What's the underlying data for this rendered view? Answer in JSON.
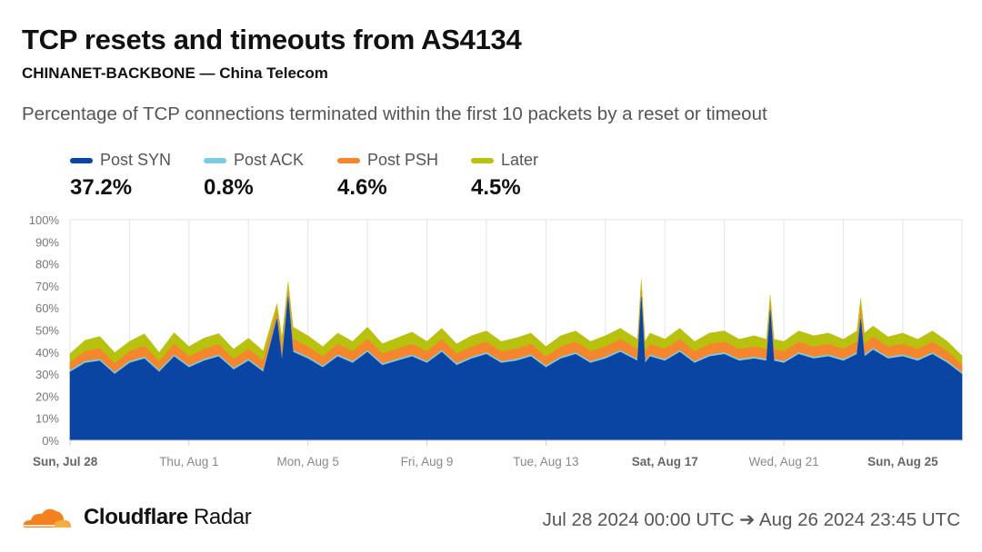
{
  "header": {
    "title": "TCP resets and timeouts from AS4134",
    "subtitle": "CHINANET-BACKBONE — China Telecom",
    "description": "Percentage of TCP connections terminated within the first 10 packets by a reset or timeout"
  },
  "legend": [
    {
      "label": "Post SYN",
      "value": "37.2%",
      "color": "#0b45a3"
    },
    {
      "label": "Post ACK",
      "value": "0.8%",
      "color": "#79cbe6"
    },
    {
      "label": "Post PSH",
      "value": "4.6%",
      "color": "#f5862e"
    },
    {
      "label": "Later",
      "value": "4.5%",
      "color": "#b8c20e"
    }
  ],
  "chart_data": {
    "type": "area",
    "stacked": true,
    "ylim": [
      0,
      100
    ],
    "y_ticks": [
      "0%",
      "10%",
      "20%",
      "30%",
      "40%",
      "50%",
      "60%",
      "70%",
      "80%",
      "90%",
      "100%"
    ],
    "x_range": [
      "2024-07-28T00:00",
      "2024-08-26T23:45"
    ],
    "x_ticks": [
      {
        "date": "2024-07-28",
        "label": "Sun, Jul 28",
        "bold": true
      },
      {
        "date": "2024-08-01",
        "label": "Thu, Aug 1",
        "bold": false
      },
      {
        "date": "2024-08-05",
        "label": "Mon, Aug 5",
        "bold": false
      },
      {
        "date": "2024-08-09",
        "label": "Fri, Aug 9",
        "bold": false
      },
      {
        "date": "2024-08-13",
        "label": "Tue, Aug 13",
        "bold": false
      },
      {
        "date": "2024-08-17",
        "label": "Sat, Aug 17",
        "bold": true
      },
      {
        "date": "2024-08-21",
        "label": "Wed, Aug 21",
        "bold": false
      },
      {
        "date": "2024-08-25",
        "label": "Sun, Aug 25",
        "bold": true
      }
    ],
    "grid": "vertical",
    "legend_position": "top",
    "series_names": [
      "Post SYN",
      "Post ACK",
      "Post PSH",
      "Later"
    ],
    "points": [
      [
        "2024-07-28T00:00",
        31,
        0.8,
        3.5,
        4.0
      ],
      [
        "2024-07-28T12:00",
        35,
        0.8,
        4.5,
        5.0
      ],
      [
        "2024-07-29T00:00",
        36,
        0.8,
        4.8,
        5.5
      ],
      [
        "2024-07-29T12:00",
        30,
        0.8,
        4.0,
        5.0
      ],
      [
        "2024-07-30T00:00",
        35,
        0.8,
        4.5,
        4.5
      ],
      [
        "2024-07-30T12:00",
        37,
        0.8,
        5.0,
        5.5
      ],
      [
        "2024-07-31T00:00",
        31,
        0.8,
        4.0,
        4.0
      ],
      [
        "2024-07-31T12:00",
        38,
        0.8,
        5.0,
        5.0
      ],
      [
        "2024-08-01T00:00",
        33,
        0.8,
        4.2,
        4.5
      ],
      [
        "2024-08-01T12:00",
        36,
        0.8,
        4.5,
        5.0
      ],
      [
        "2024-08-02T00:00",
        38,
        0.8,
        4.6,
        5.0
      ],
      [
        "2024-08-02T12:00",
        32,
        0.8,
        4.0,
        4.5
      ],
      [
        "2024-08-03T00:00",
        36,
        0.8,
        4.5,
        5.0
      ],
      [
        "2024-08-03T12:00",
        31,
        0.8,
        4.2,
        4.5
      ],
      [
        "2024-08-03T23:00",
        55,
        0.8,
        2.5,
        3.5
      ],
      [
        "2024-08-04T03:00",
        36,
        0.8,
        4.5,
        5.0
      ],
      [
        "2024-08-04T08:00",
        65,
        0.8,
        2.0,
        4.0
      ],
      [
        "2024-08-04T12:00",
        40,
        0.8,
        5.0,
        5.5
      ],
      [
        "2024-08-05T00:00",
        37,
        0.8,
        4.6,
        5.0
      ],
      [
        "2024-08-05T12:00",
        33,
        0.8,
        4.2,
        4.5
      ],
      [
        "2024-08-06T00:00",
        38,
        0.8,
        4.8,
        5.0
      ],
      [
        "2024-08-06T12:00",
        35,
        0.8,
        4.5,
        4.5
      ],
      [
        "2024-08-07T00:00",
        40,
        0.8,
        5.0,
        5.5
      ],
      [
        "2024-08-07T12:00",
        34,
        0.8,
        4.5,
        4.5
      ],
      [
        "2024-08-08T00:00",
        36,
        0.8,
        4.6,
        5.0
      ],
      [
        "2024-08-08T12:00",
        38,
        0.8,
        4.8,
        5.5
      ],
      [
        "2024-08-09T00:00",
        35,
        0.8,
        4.5,
        4.5
      ],
      [
        "2024-08-09T12:00",
        40,
        0.8,
        5.0,
        5.0
      ],
      [
        "2024-08-10T00:00",
        34,
        0.8,
        4.4,
        4.5
      ],
      [
        "2024-08-10T12:00",
        37,
        0.8,
        4.6,
        5.0
      ],
      [
        "2024-08-11T00:00",
        39,
        0.8,
        4.8,
        5.0
      ],
      [
        "2024-08-11T12:00",
        35,
        0.8,
        4.5,
        4.5
      ],
      [
        "2024-08-12T00:00",
        36,
        0.8,
        4.6,
        5.0
      ],
      [
        "2024-08-12T12:00",
        38,
        0.8,
        4.8,
        5.0
      ],
      [
        "2024-08-13T00:00",
        33,
        0.8,
        4.2,
        4.5
      ],
      [
        "2024-08-13T12:00",
        37,
        0.8,
        4.6,
        5.0
      ],
      [
        "2024-08-14T00:00",
        39,
        0.8,
        4.8,
        5.0
      ],
      [
        "2024-08-14T12:00",
        35,
        0.8,
        4.5,
        4.5
      ],
      [
        "2024-08-15T00:00",
        37,
        0.8,
        4.6,
        5.0
      ],
      [
        "2024-08-15T12:00",
        40,
        0.8,
        5.0,
        5.0
      ],
      [
        "2024-08-16T02:00",
        36,
        0.8,
        4.5,
        4.5
      ],
      [
        "2024-08-16T05:00",
        65,
        0.8,
        2.5,
        4.5
      ],
      [
        "2024-08-16T08:00",
        35,
        0.8,
        4.5,
        4.5
      ],
      [
        "2024-08-16T12:00",
        38,
        0.8,
        4.8,
        5.0
      ],
      [
        "2024-08-17T00:00",
        36,
        0.8,
        4.6,
        4.5
      ],
      [
        "2024-08-17T12:00",
        40,
        0.8,
        5.0,
        5.0
      ],
      [
        "2024-08-18T00:00",
        35,
        0.8,
        4.5,
        4.5
      ],
      [
        "2024-08-18T12:00",
        38,
        0.8,
        4.8,
        5.0
      ],
      [
        "2024-08-19T00:00",
        39,
        0.8,
        4.8,
        5.0
      ],
      [
        "2024-08-19T12:00",
        36,
        0.8,
        4.5,
        4.5
      ],
      [
        "2024-08-20T00:00",
        37,
        0.8,
        4.6,
        5.0
      ],
      [
        "2024-08-20T10:00",
        36,
        0.8,
        4.5,
        4.5
      ],
      [
        "2024-08-20T13:00",
        59,
        0.8,
        2.5,
        3.5
      ],
      [
        "2024-08-20T16:00",
        36,
        0.8,
        4.5,
        4.5
      ],
      [
        "2024-08-21T00:00",
        35,
        0.8,
        4.5,
        4.5
      ],
      [
        "2024-08-21T12:00",
        39,
        0.8,
        4.8,
        5.0
      ],
      [
        "2024-08-22T00:00",
        37,
        0.8,
        4.6,
        5.0
      ],
      [
        "2024-08-22T12:00",
        38,
        0.8,
        4.8,
        5.0
      ],
      [
        "2024-08-23T00:00",
        36,
        0.8,
        4.5,
        4.5
      ],
      [
        "2024-08-23T11:00",
        39,
        0.8,
        4.8,
        5.0
      ],
      [
        "2024-08-23T14:00",
        55,
        0.8,
        4.0,
        4.5
      ],
      [
        "2024-08-23T17:00",
        38,
        0.8,
        4.8,
        5.0
      ],
      [
        "2024-08-24T00:00",
        41,
        0.8,
        5.0,
        5.0
      ],
      [
        "2024-08-24T12:00",
        37,
        0.8,
        4.6,
        4.5
      ],
      [
        "2024-08-25T00:00",
        38,
        0.8,
        4.8,
        5.0
      ],
      [
        "2024-08-25T12:00",
        36,
        0.8,
        4.5,
        4.5
      ],
      [
        "2024-08-26T00:00",
        39,
        0.8,
        4.8,
        5.0
      ],
      [
        "2024-08-26T12:00",
        35,
        0.8,
        4.5,
        4.5
      ],
      [
        "2024-08-26T23:45",
        30,
        0.8,
        3.5,
        4.0
      ]
    ]
  },
  "footer": {
    "brand_bold": "Cloudflare",
    "brand_rest": "Radar",
    "logo_icon": "cloud-icon",
    "date_range": "Jul 28 2024 00:00 UTC ➔ Aug 26 2024 23:45 UTC"
  }
}
